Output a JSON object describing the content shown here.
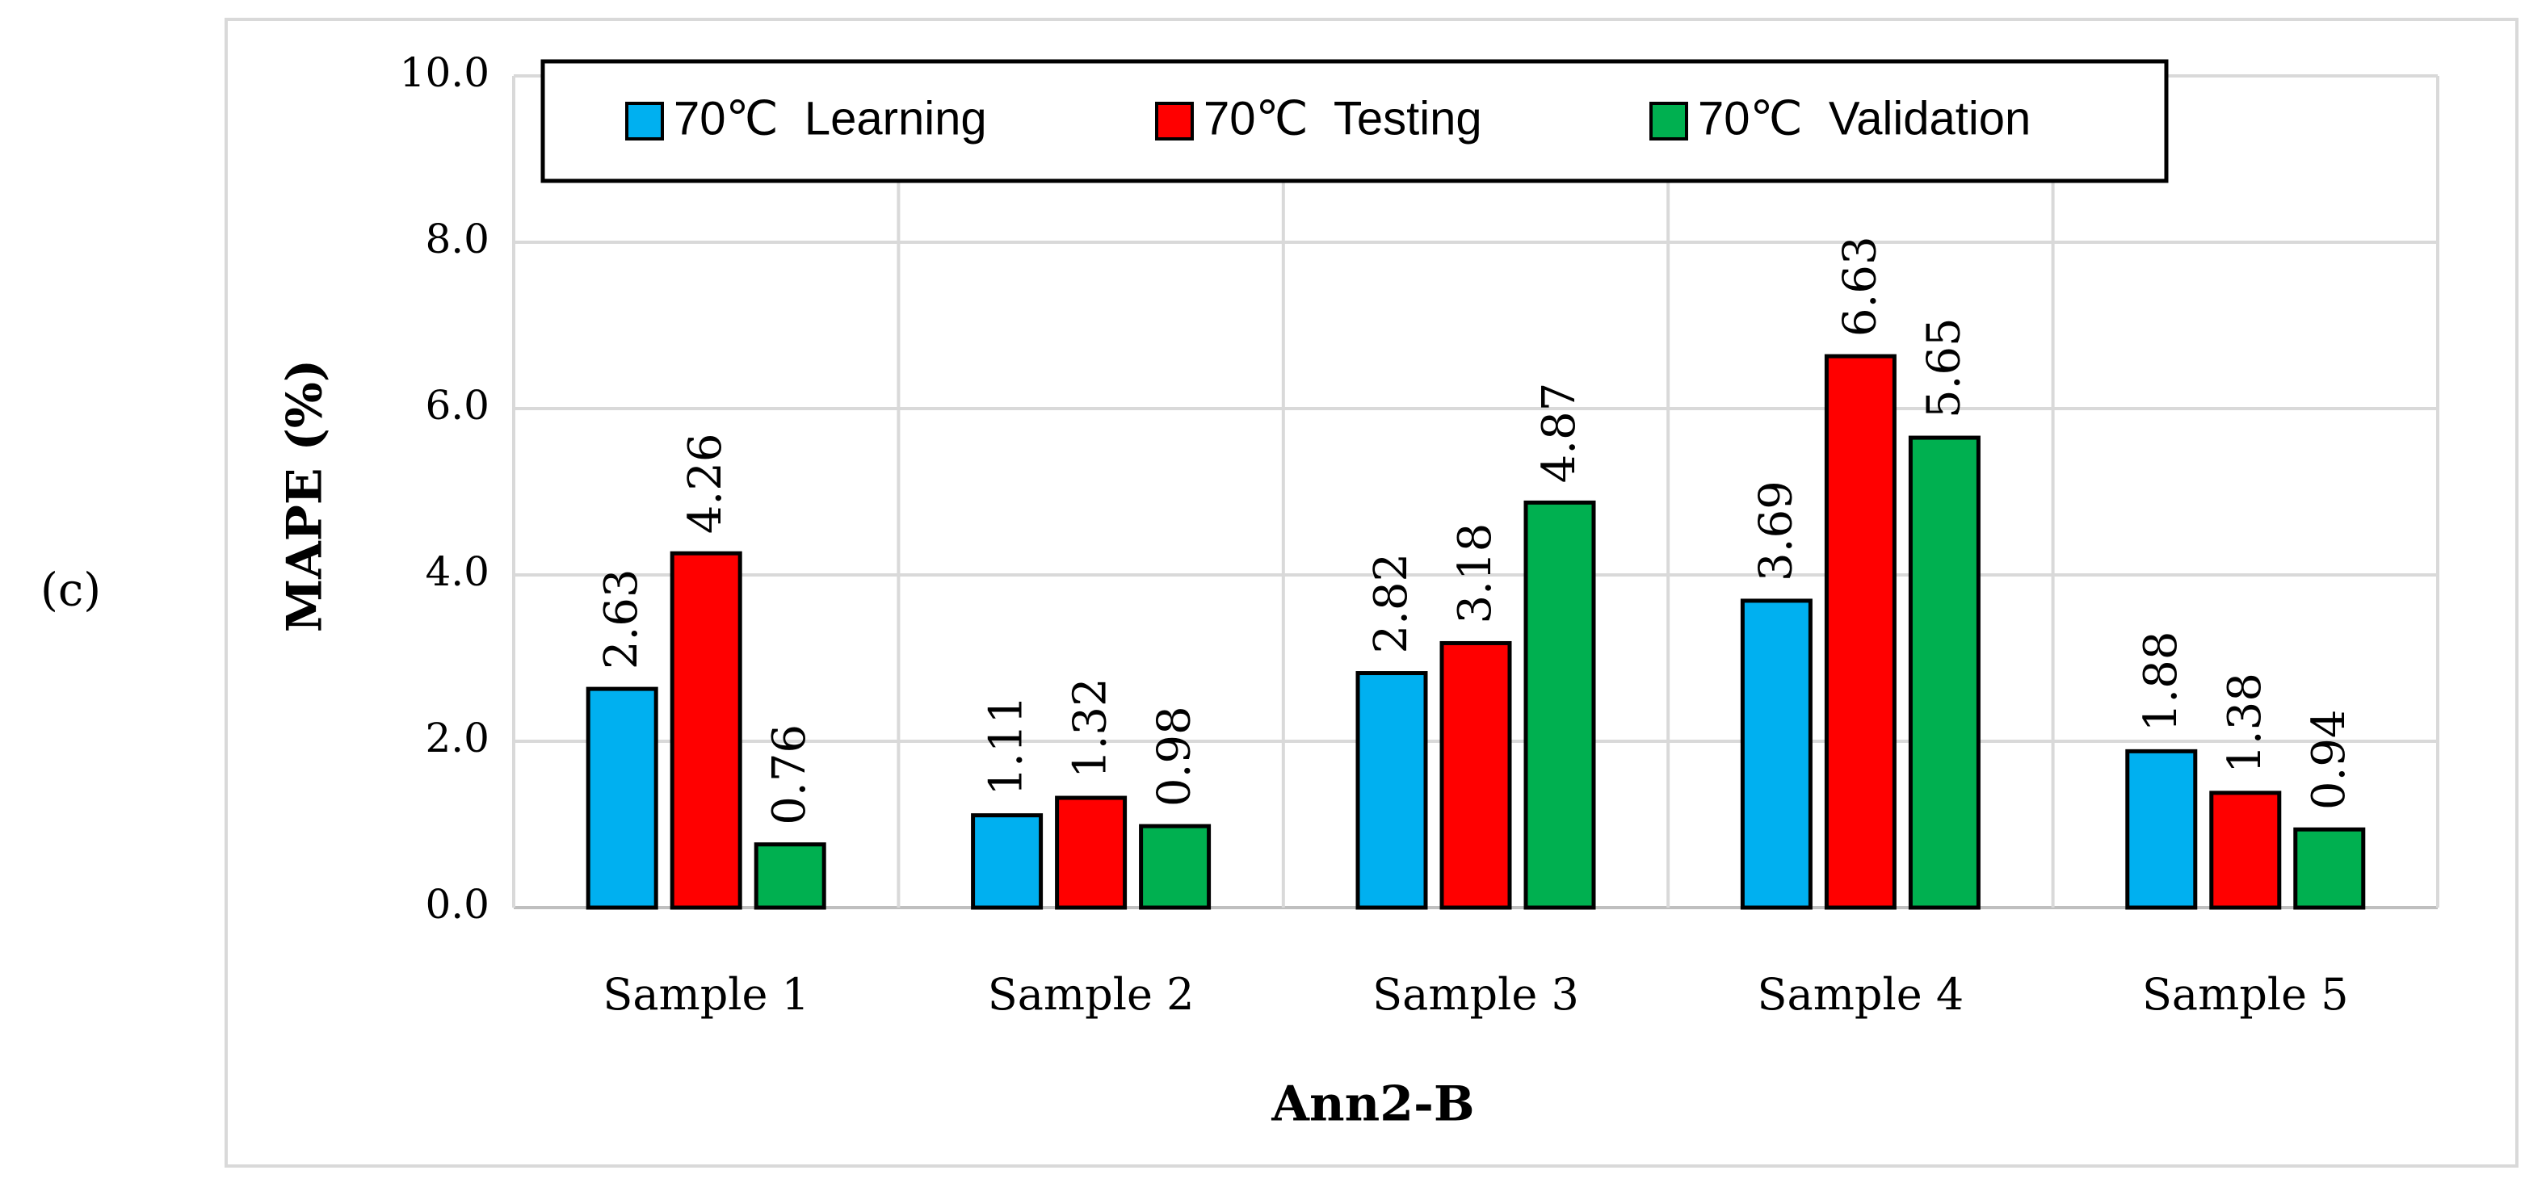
{
  "panel_label": "(c)",
  "chart_data": {
    "type": "bar",
    "title": "",
    "xlabel": "Ann2-B",
    "ylabel": "MAPE (%)",
    "ylim": [
      0,
      10
    ],
    "y_ticks": [
      "0.0",
      "2.0",
      "4.0",
      "6.0",
      "8.0",
      "10.0"
    ],
    "y_tick_values": [
      0,
      2,
      4,
      6,
      8,
      10
    ],
    "grid": true,
    "legend_position": "top",
    "categories": [
      "Sample 1",
      "Sample 2",
      "Sample 3",
      "Sample 4",
      "Sample 5"
    ],
    "series": [
      {
        "name": "70℃  Learning",
        "color": "#00b0f0",
        "values": [
          2.63,
          1.11,
          2.82,
          3.69,
          1.88
        ],
        "labels": [
          "2.63",
          "1.11",
          "2.82",
          "3.69",
          "1.88"
        ]
      },
      {
        "name": "70℃  Testing",
        "color": "#ff0000",
        "values": [
          4.26,
          1.32,
          3.18,
          6.63,
          1.38
        ],
        "labels": [
          "4.26",
          "1.32",
          "3.18",
          "6.63",
          "1.38"
        ]
      },
      {
        "name": "70℃  Validation",
        "color": "#00b050",
        "values": [
          0.76,
          0.98,
          4.87,
          5.65,
          0.94
        ],
        "labels": [
          "0.76",
          "0.98",
          "4.87",
          "5.65",
          "0.94"
        ]
      }
    ]
  }
}
